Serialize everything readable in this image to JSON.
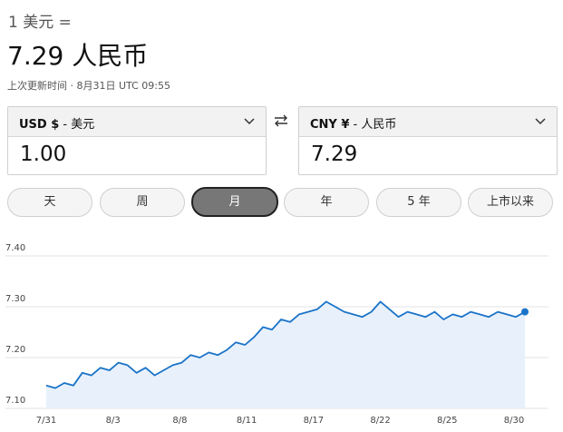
{
  "header": {
    "base": "1 美元 =",
    "rate": "7.29 人民币",
    "updated": "上次更新时间 · 8月31日 UTC 09:55"
  },
  "converter": {
    "from": {
      "code": "USD $",
      "name": " - 美元",
      "value": "1.00"
    },
    "to": {
      "code": "CNY ¥",
      "name": " - 人民币",
      "value": "7.29"
    }
  },
  "ranges": [
    {
      "label": "天",
      "active": false
    },
    {
      "label": "周",
      "active": false
    },
    {
      "label": "月",
      "active": true
    },
    {
      "label": "年",
      "active": false
    },
    {
      "label": "5 年",
      "active": false
    },
    {
      "label": "上市以来",
      "active": false
    }
  ],
  "colors": {
    "line": "#1a73c8",
    "fill": "#e8f1fb",
    "grid": "#e3e3e3"
  },
  "chart_data": {
    "type": "area",
    "y_ticks": [
      "7.40",
      "7.30",
      "7.20",
      "7.10"
    ],
    "ylim": [
      7.1,
      7.4
    ],
    "x_ticks": [
      "7/31",
      "8/3",
      "8/8",
      "8/11",
      "8/17",
      "8/22",
      "8/25",
      "8/30"
    ],
    "values": [
      7.145,
      7.14,
      7.15,
      7.145,
      7.17,
      7.165,
      7.18,
      7.175,
      7.19,
      7.185,
      7.17,
      7.18,
      7.165,
      7.175,
      7.185,
      7.19,
      7.205,
      7.2,
      7.21,
      7.205,
      7.215,
      7.23,
      7.225,
      7.24,
      7.26,
      7.255,
      7.275,
      7.27,
      7.285,
      7.29,
      7.295,
      7.31,
      7.3,
      7.29,
      7.285,
      7.28,
      7.29,
      7.31,
      7.295,
      7.28,
      7.29,
      7.285,
      7.28,
      7.29,
      7.275,
      7.285,
      7.28,
      7.29,
      7.285,
      7.28,
      7.29,
      7.285,
      7.28,
      7.29
    ],
    "last_point_marker": true
  }
}
